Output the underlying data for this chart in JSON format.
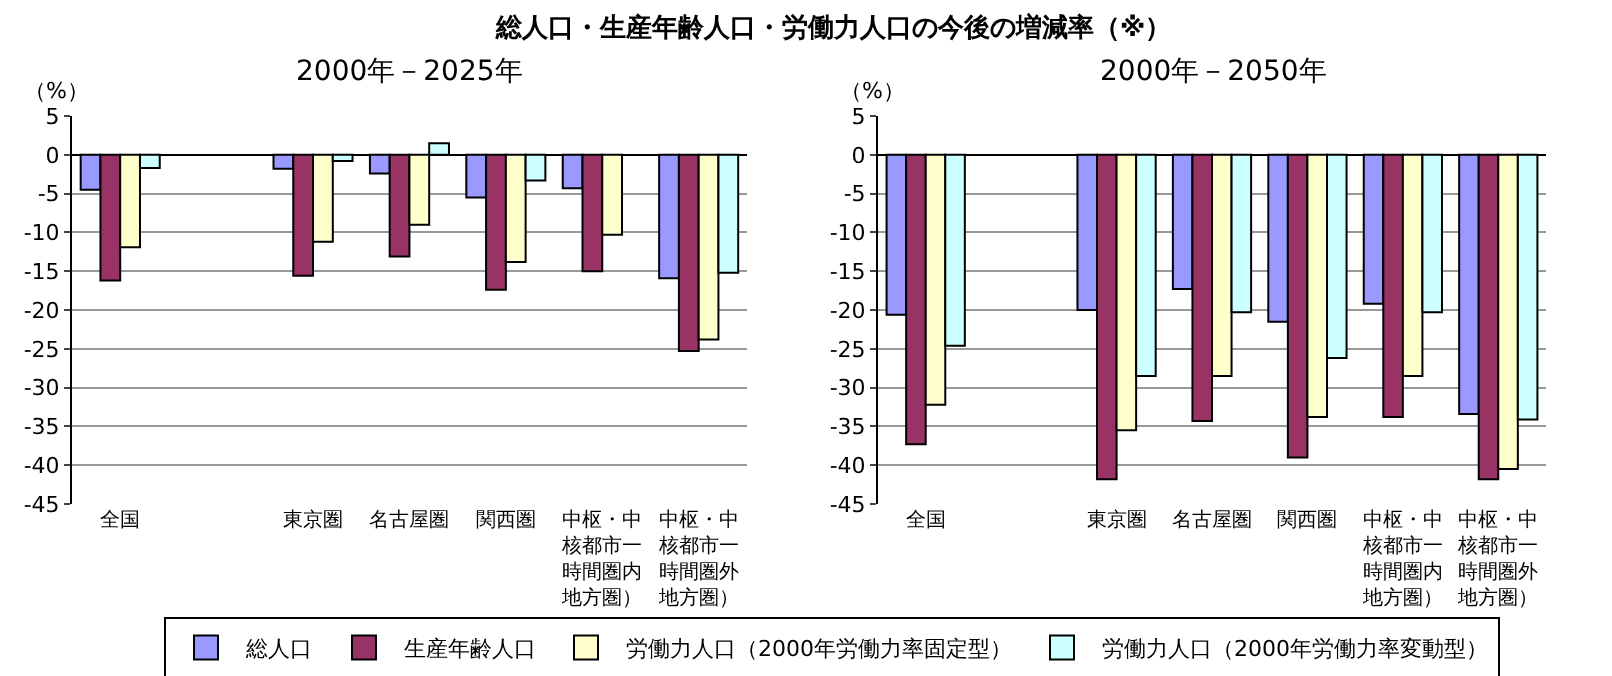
{
  "chart_data": [
    {
      "type": "bar",
      "title": "総人口・生産年齢人口・労働力人口の今後の増減率（※）",
      "subtitle": "2000年－2025年",
      "ylabel": "（%）",
      "categories": [
        "全国",
        null,
        "東京圏",
        "名古屋圏",
        "関西圏",
        "中枢・中核都市一時間圏内地方圏）",
        "中枢・中核都市一時間圏外地方圏）"
      ],
      "series": [
        {
          "name": "総人口",
          "color": "#9999ff",
          "values": [
            -4.5,
            null,
            -1.8,
            -2.4,
            -5.5,
            -4.3,
            -15.9
          ]
        },
        {
          "name": "生産年齢人口",
          "color": "#993366",
          "values": [
            -16.2,
            null,
            -15.6,
            -13.1,
            -17.4,
            -15.0,
            -25.3
          ]
        },
        {
          "name": "労働力人口（2000年労働力率固定型）",
          "color": "#ffffcc",
          "values": [
            -11.9,
            null,
            -11.2,
            -9.0,
            -13.8,
            -10.3,
            -23.8
          ]
        },
        {
          "name": "労働力人口（2000年労働力率変動型）",
          "color": "#ccffff",
          "values": [
            -1.7,
            null,
            -0.8,
            1.5,
            -3.3,
            null,
            -15.2
          ]
        }
      ],
      "ylim": [
        -45,
        5
      ],
      "yticks": [
        -45,
        -40,
        -35,
        -30,
        -25,
        -20,
        -15,
        -10,
        -5,
        0,
        5
      ],
      "grid": "y",
      "legend": "bottom"
    },
    {
      "type": "bar",
      "subtitle": "2000年－2050年",
      "ylabel": "（%）",
      "categories": [
        "全国",
        null,
        "東京圏",
        "名古屋圏",
        "関西圏",
        "中枢・中核都市一時間圏内地方圏）",
        "中枢・中核都市一時間圏外地方圏）"
      ],
      "series": [
        {
          "color": "#9999ff",
          "values": [
            -20.6,
            null,
            -20.0,
            -17.3,
            -21.5,
            -19.2,
            -33.4
          ]
        },
        {
          "color": "#993366",
          "values": [
            -37.3,
            null,
            -41.8,
            -34.3,
            -39.0,
            -33.8,
            -41.8
          ]
        },
        {
          "color": "#ffffcc",
          "values": [
            -32.2,
            null,
            -35.5,
            -28.5,
            -33.8,
            -28.5,
            -40.5
          ]
        },
        {
          "color": "#ccffff",
          "values": [
            -24.6,
            null,
            -28.5,
            -20.3,
            -26.2,
            -20.3,
            -34.1
          ]
        }
      ],
      "ylim": [
        -45,
        5
      ],
      "yticks": [
        -45,
        -40,
        -35,
        -30,
        -25,
        -20,
        -15,
        -10,
        -5,
        0,
        5
      ],
      "grid": "y",
      "legend": false
    }
  ]
}
